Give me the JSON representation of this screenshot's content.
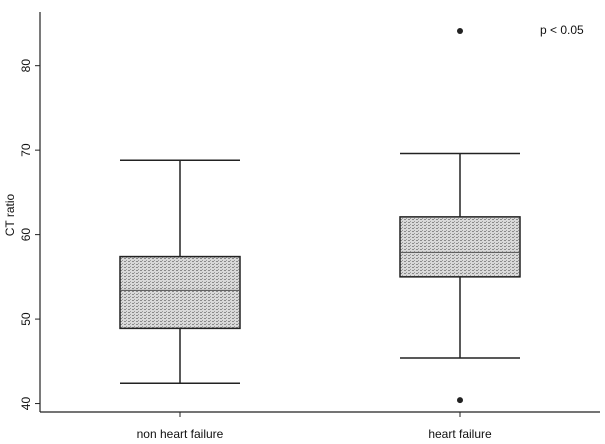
{
  "chart_data": {
    "type": "box",
    "ylabel": "CT ratio",
    "annotation": "p < 0.05",
    "categories": [
      "non heart failure",
      "heart failure"
    ],
    "min": [
      42.4,
      45.4
    ],
    "q1": [
      48.9,
      55.0
    ],
    "median": [
      53.4,
      57.9
    ],
    "q3": [
      57.4,
      62.1
    ],
    "max": [
      68.8,
      69.6
    ],
    "outliers": [
      [],
      [
        84.1,
        40.4
      ]
    ],
    "color": "#bdbdbd",
    "ylim": [
      39,
      86
    ],
    "yticks": [
      40,
      50,
      60,
      70,
      80
    ]
  }
}
